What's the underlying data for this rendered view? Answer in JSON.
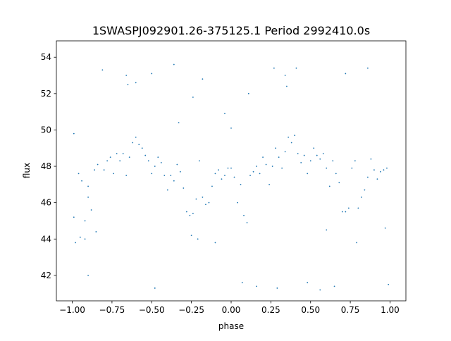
{
  "chart_data": {
    "type": "scatter",
    "title": "1SWASPJ092901.26-375125.1 Period 2992410.0s",
    "xlabel": "phase",
    "ylabel": "flux",
    "xlim": [
      -1.1,
      1.1
    ],
    "ylim": [
      40.6,
      54.9
    ],
    "x_ticks": [
      -1.0,
      -0.75,
      -0.5,
      -0.25,
      0.0,
      0.25,
      0.5,
      0.75,
      1.0
    ],
    "x_tick_labels": [
      "−1.00",
      "−0.75",
      "−0.50",
      "−0.25",
      "0.00",
      "0.25",
      "0.50",
      "0.75",
      "1.00"
    ],
    "y_ticks": [
      42,
      44,
      46,
      48,
      50,
      52,
      54
    ],
    "y_tick_labels": [
      "42",
      "44",
      "46",
      "48",
      "50",
      "52",
      "54"
    ],
    "grid": false,
    "legend": "none",
    "marker_color": "#1f77b4",
    "series": [
      {
        "x": [
          -0.99,
          -0.96,
          -0.94,
          -0.92,
          -0.9,
          -0.88,
          -0.86,
          -0.84,
          -0.8,
          -0.78,
          -0.76,
          -0.74,
          -0.72,
          -0.7,
          -0.68,
          -0.66,
          -0.64,
          -0.62,
          -0.6,
          -0.58,
          -0.56,
          -0.54,
          -0.52,
          -0.5,
          -0.48,
          -0.46,
          -0.44,
          -0.42,
          -0.4,
          -0.38,
          -0.36,
          -0.34,
          -0.32,
          -0.3,
          -0.28,
          -0.26,
          -0.24,
          -0.22,
          -0.2,
          -0.18,
          -0.16,
          -0.14,
          -0.12,
          -0.1,
          -0.08,
          -0.06,
          -0.04,
          -0.02,
          0.0,
          0.02,
          0.04,
          0.06,
          0.08,
          0.1,
          0.12,
          0.14,
          0.16,
          0.18,
          0.2,
          0.22,
          0.24,
          0.26,
          0.28,
          0.3,
          0.32,
          0.34,
          0.36,
          0.38,
          0.4,
          0.42,
          0.44,
          0.46,
          0.48,
          0.5,
          0.52,
          0.54,
          0.56,
          0.58,
          0.6,
          0.62,
          0.64,
          0.66,
          0.68,
          0.7,
          0.72,
          0.74,
          0.76,
          0.78,
          0.8,
          0.82,
          0.84,
          0.86,
          0.88,
          0.9,
          0.92,
          0.94,
          0.96,
          0.98,
          -0.99,
          -0.92,
          -0.9,
          -0.85,
          -0.66,
          -0.65,
          -0.33,
          -0.25,
          -0.21,
          -0.1,
          0.0,
          0.34,
          0.35,
          0.6,
          0.79,
          0.97,
          -0.98,
          -0.9,
          -0.81,
          -0.6,
          -0.48,
          -0.36,
          -0.24,
          -0.04,
          0.07,
          0.11,
          0.16,
          0.29,
          0.41,
          0.56,
          0.65,
          0.86,
          0.99,
          -0.95,
          -0.5,
          -0.18,
          0.27,
          0.48,
          0.72
        ],
        "y": [
          49.8,
          47.6,
          47.2,
          45.0,
          46.3,
          45.6,
          47.8,
          48.1,
          47.8,
          48.3,
          48.5,
          47.6,
          48.7,
          48.3,
          48.7,
          47.5,
          48.5,
          49.3,
          49.6,
          49.2,
          49.0,
          48.6,
          48.3,
          47.6,
          48.0,
          48.5,
          48.2,
          47.5,
          46.7,
          47.5,
          47.2,
          48.1,
          47.7,
          46.8,
          45.5,
          45.3,
          45.4,
          46.2,
          48.3,
          46.3,
          45.9,
          46.0,
          46.9,
          47.6,
          47.8,
          47.3,
          47.5,
          47.9,
          47.9,
          47.4,
          46.0,
          47.0,
          45.3,
          44.9,
          47.5,
          47.7,
          48.0,
          47.6,
          48.5,
          48.1,
          47.0,
          48.0,
          49.0,
          48.5,
          47.9,
          48.8,
          49.6,
          49.3,
          49.7,
          48.7,
          48.2,
          48.6,
          47.6,
          48.3,
          49.0,
          48.6,
          48.4,
          48.7,
          47.9,
          46.9,
          48.3,
          47.6,
          47.1,
          45.5,
          45.5,
          45.7,
          47.9,
          48.3,
          45.7,
          46.3,
          46.7,
          47.4,
          48.4,
          47.8,
          47.3,
          47.7,
          47.8,
          47.9,
          45.2,
          44.0,
          46.9,
          44.4,
          53.0,
          52.5,
          50.4,
          44.2,
          44.0,
          43.8,
          50.1,
          53.0,
          52.4,
          44.5,
          43.8,
          44.6,
          43.8,
          42.0,
          53.3,
          52.6,
          41.3,
          53.6,
          51.8,
          50.9,
          41.6,
          52.0,
          41.4,
          41.3,
          53.4,
          41.2,
          41.4,
          53.4,
          41.5,
          44.1,
          53.1,
          52.8,
          53.4,
          41.6,
          53.1
        ]
      }
    ]
  }
}
